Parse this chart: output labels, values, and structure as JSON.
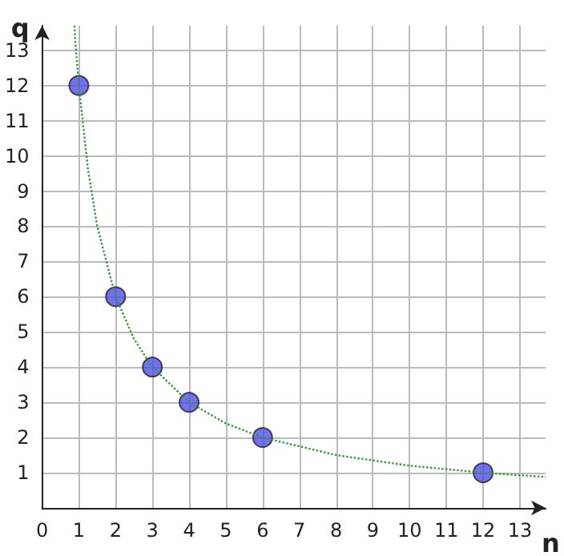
{
  "chart_data": {
    "type": "scatter",
    "xlabel": "n",
    "ylabel": "q",
    "xlim": [
      0,
      13.7
    ],
    "ylim": [
      0,
      13.7
    ],
    "xticks": [
      0,
      1,
      2,
      3,
      4,
      5,
      6,
      7,
      8,
      9,
      10,
      11,
      12,
      13
    ],
    "yticks": [
      {
        "value": 0,
        "label": null
      },
      1,
      2,
      3,
      4,
      5,
      6,
      7,
      8,
      9,
      10,
      11,
      12,
      13
    ],
    "grid": true,
    "series": [
      {
        "type": "line",
        "color": "#339933",
        "marker": "none",
        "line_style": "dotted",
        "x": [
          0.88,
          0.9,
          1,
          1.25,
          1.5,
          2,
          2.5,
          3,
          4,
          5,
          6,
          8,
          10,
          12,
          13.7
        ],
        "values": [
          13.7,
          13.3,
          12,
          9.6,
          8,
          6,
          4.8,
          4,
          3,
          2.4,
          2,
          1.5,
          1.2,
          1,
          0.88
        ]
      },
      {
        "color": "#4f4fee",
        "marker": "circle",
        "x": [
          1,
          2,
          3,
          4,
          6,
          12
        ],
        "values": [
          12,
          6,
          4,
          3,
          2,
          1
        ]
      }
    ]
  }
}
